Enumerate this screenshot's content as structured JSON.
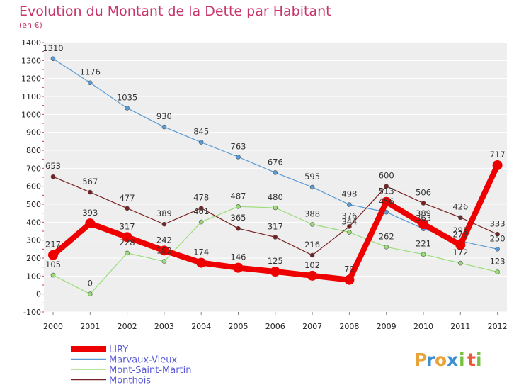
{
  "title": "Evolution du Montant de la Dette par Habitant",
  "subtitle": "(en €)",
  "brand": {
    "letters": [
      "P",
      "r",
      "o",
      "x",
      "i",
      "t",
      "i"
    ],
    "colors": [
      "#e8a33a",
      "#3b8fd0",
      "#e8a33a",
      "#3b8fd0",
      "#7ac143",
      "#e85a3a",
      "#7ac143"
    ]
  },
  "colors": {
    "background": "#ffffff",
    "plot_background": "#eeeeee",
    "grid": "#ffffff",
    "title": "#c8356a"
  },
  "chart_data": {
    "type": "line",
    "title": "Evolution du Montant de la Dette par Habitant",
    "subtitle": "(en €)",
    "xlabel": "",
    "ylabel": "",
    "ylim": [
      -100,
      1400
    ],
    "y_ticks": [
      -100,
      0,
      100,
      200,
      300,
      400,
      500,
      600,
      700,
      800,
      900,
      1000,
      1100,
      1200,
      1300,
      1400
    ],
    "grid": true,
    "legend_position": "bottom-left",
    "categories": [
      "2000",
      "2001",
      "2002",
      "2003",
      "2004",
      "2005",
      "2006",
      "2007",
      "2008",
      "2009",
      "2010",
      "2011",
      "2012"
    ],
    "series": [
      {
        "name": "LIRY",
        "color": "#ee0000",
        "style": "thick",
        "values": [
          217,
          393,
          317,
          242,
          174,
          146,
          125,
          102,
          79,
          513,
          389,
          273,
          717
        ]
      },
      {
        "name": "Marvaux-Vieux",
        "color": "#5b9bd5",
        "style": "thin",
        "values": [
          1310,
          1176,
          1035,
          930,
          845,
          763,
          676,
          595,
          498,
          456,
          363,
          295,
          250
        ]
      },
      {
        "name": "Mont-Saint-Martin",
        "color": "#99dd77",
        "style": "thin",
        "values": [
          105,
          0,
          228,
          182,
          401,
          487,
          480,
          388,
          344,
          262,
          221,
          172,
          123
        ]
      },
      {
        "name": "Monthois",
        "color": "#772222",
        "style": "thin",
        "values": [
          653,
          567,
          477,
          389,
          478,
          365,
          317,
          216,
          376,
          600,
          506,
          426,
          333
        ]
      }
    ]
  }
}
